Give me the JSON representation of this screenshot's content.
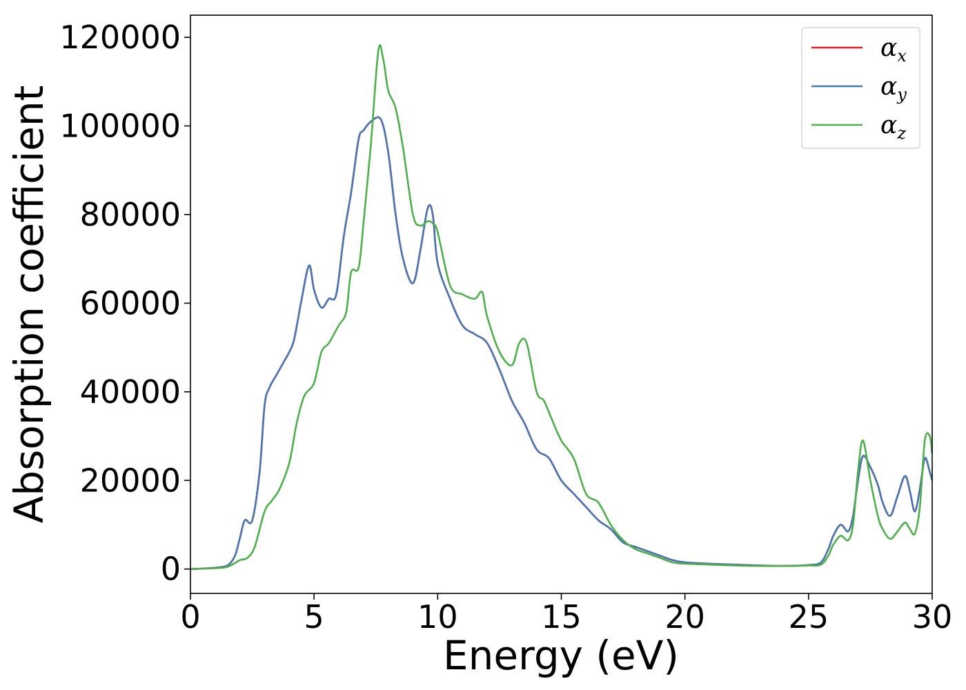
{
  "chart_data": {
    "type": "line",
    "title": "",
    "xlabel": "Energy (eV)",
    "ylabel": "Absorption coefficient",
    "xlim": [
      0,
      30
    ],
    "ylim": [
      -5500,
      125000
    ],
    "xticks": [
      0,
      5,
      10,
      15,
      20,
      25,
      30
    ],
    "yticks": [
      0,
      20000,
      40000,
      60000,
      80000,
      100000,
      120000
    ],
    "grid": false,
    "legend_position": "top-right",
    "series": [
      {
        "name": "αx",
        "legend_base": "α",
        "legend_sub": "x",
        "color": "#e41a1c",
        "x": [
          0,
          0.5,
          1.0,
          1.5,
          1.8,
          2.0,
          2.2,
          2.5,
          2.8,
          3.0,
          3.2,
          3.5,
          3.8,
          4.0,
          4.2,
          4.5,
          4.8,
          5.0,
          5.3,
          5.6,
          5.9,
          6.2,
          6.5,
          6.8,
          7.0,
          7.3,
          7.7,
          8.0,
          8.3,
          8.6,
          9.0,
          9.3,
          9.6,
          9.8,
          10.0,
          10.5,
          11.0,
          11.5,
          12.0,
          12.5,
          13.0,
          13.5,
          14.0,
          14.5,
          15.0,
          15.5,
          16.0,
          16.5,
          17.0,
          17.5,
          18.0,
          18.5,
          19.0,
          19.5,
          20.0,
          21.0,
          22.0,
          23.0,
          24.0,
          25.0,
          25.5,
          25.8,
          26.0,
          26.3,
          26.6,
          26.8,
          27.0,
          27.2,
          27.5,
          27.8,
          28.0,
          28.3,
          28.6,
          28.9,
          29.1,
          29.3,
          29.5,
          29.7,
          29.9,
          30.0
        ],
        "y": [
          0,
          100,
          300,
          800,
          3000,
          7000,
          11000,
          11000,
          22000,
          37000,
          41000,
          44000,
          47000,
          49000,
          52000,
          61000,
          68500,
          63000,
          59000,
          61000,
          62000,
          75000,
          85000,
          97000,
          99000,
          101000,
          101500,
          94000,
          80000,
          70000,
          64500,
          72000,
          81500,
          80000,
          69000,
          61000,
          55000,
          53000,
          51000,
          45000,
          38000,
          33000,
          27000,
          25000,
          20000,
          17000,
          14000,
          11000,
          9000,
          6000,
          5000,
          4000,
          3000,
          2000,
          1500,
          1200,
          1000,
          800,
          700,
          900,
          1500,
          4500,
          7500,
          10000,
          8500,
          12000,
          20000,
          25500,
          23000,
          19000,
          15000,
          12000,
          16500,
          21000,
          17500,
          13000,
          18000,
          25000,
          22000,
          20000
        ]
      },
      {
        "name": "αy",
        "legend_base": "α",
        "legend_sub": "y",
        "color": "#4776b4",
        "x": [
          0,
          0.5,
          1.0,
          1.5,
          1.8,
          2.0,
          2.2,
          2.5,
          2.8,
          3.0,
          3.2,
          3.5,
          3.8,
          4.0,
          4.2,
          4.5,
          4.8,
          5.0,
          5.3,
          5.6,
          5.9,
          6.2,
          6.5,
          6.8,
          7.0,
          7.3,
          7.7,
          8.0,
          8.3,
          8.6,
          9.0,
          9.3,
          9.6,
          9.8,
          10.0,
          10.5,
          11.0,
          11.5,
          12.0,
          12.5,
          13.0,
          13.5,
          14.0,
          14.5,
          15.0,
          15.5,
          16.0,
          16.5,
          17.0,
          17.5,
          18.0,
          18.5,
          19.0,
          19.5,
          20.0,
          21.0,
          22.0,
          23.0,
          24.0,
          25.0,
          25.5,
          25.8,
          26.0,
          26.3,
          26.6,
          26.8,
          27.0,
          27.2,
          27.5,
          27.8,
          28.0,
          28.3,
          28.6,
          28.9,
          29.1,
          29.3,
          29.5,
          29.7,
          29.9,
          30.0
        ],
        "y": [
          0,
          100,
          300,
          800,
          3000,
          7000,
          11000,
          11000,
          22000,
          37000,
          41000,
          44000,
          47000,
          49000,
          52000,
          61000,
          68500,
          63000,
          59000,
          61000,
          62000,
          75000,
          85000,
          97000,
          99000,
          101000,
          101500,
          94000,
          80000,
          70000,
          64500,
          72000,
          81500,
          80000,
          69000,
          61000,
          55000,
          53000,
          51000,
          45000,
          38000,
          33000,
          27000,
          25000,
          20000,
          17000,
          14000,
          11000,
          9000,
          6000,
          5000,
          4000,
          3000,
          2000,
          1500,
          1200,
          1000,
          800,
          700,
          900,
          1500,
          4500,
          7500,
          10000,
          8500,
          12000,
          20000,
          25500,
          23000,
          19000,
          15000,
          12000,
          16500,
          21000,
          17500,
          13000,
          18000,
          25000,
          22000,
          20000
        ]
      },
      {
        "name": "αz",
        "legend_base": "α",
        "legend_sub": "z",
        "color": "#4daf4a",
        "x": [
          0,
          0.5,
          1.0,
          1.5,
          2.0,
          2.3,
          2.6,
          3.0,
          3.3,
          3.6,
          4.0,
          4.3,
          4.6,
          5.0,
          5.3,
          5.6,
          6.0,
          6.3,
          6.5,
          6.8,
          7.0,
          7.3,
          7.6,
          7.8,
          8.0,
          8.3,
          8.6,
          9.0,
          9.3,
          9.6,
          9.8,
          10.0,
          10.5,
          11.0,
          11.5,
          11.8,
          12.0,
          12.5,
          13.0,
          13.3,
          13.6,
          14.0,
          14.3,
          14.6,
          15.0,
          15.5,
          16.0,
          16.5,
          17.0,
          17.5,
          18.0,
          18.5,
          19.0,
          19.5,
          20.0,
          21.0,
          22.0,
          23.0,
          24.0,
          25.0,
          25.5,
          25.8,
          26.0,
          26.3,
          26.6,
          26.8,
          27.0,
          27.2,
          27.5,
          27.8,
          28.0,
          28.3,
          28.6,
          28.9,
          29.1,
          29.3,
          29.5,
          29.7,
          29.9,
          30.0
        ],
        "y": [
          0,
          100,
          200,
          500,
          2000,
          2500,
          5000,
          13000,
          15500,
          18000,
          24000,
          33000,
          39000,
          42000,
          49000,
          51000,
          55000,
          58000,
          67000,
          68000,
          78000,
          96000,
          117000,
          115000,
          108000,
          104000,
          95000,
          80000,
          77500,
          78500,
          78000,
          76000,
          64000,
          62000,
          61000,
          62500,
          57000,
          49000,
          46000,
          51000,
          51000,
          40000,
          38000,
          34000,
          29000,
          25000,
          17000,
          15000,
          10000,
          6500,
          4500,
          3500,
          2500,
          1500,
          1200,
          1000,
          800,
          700,
          700,
          800,
          1000,
          3000,
          5500,
          7500,
          6500,
          10000,
          22000,
          29000,
          20000,
          12000,
          9000,
          6800,
          8500,
          10500,
          9000,
          8000,
          14000,
          29000,
          30000,
          26000
        ]
      }
    ]
  }
}
